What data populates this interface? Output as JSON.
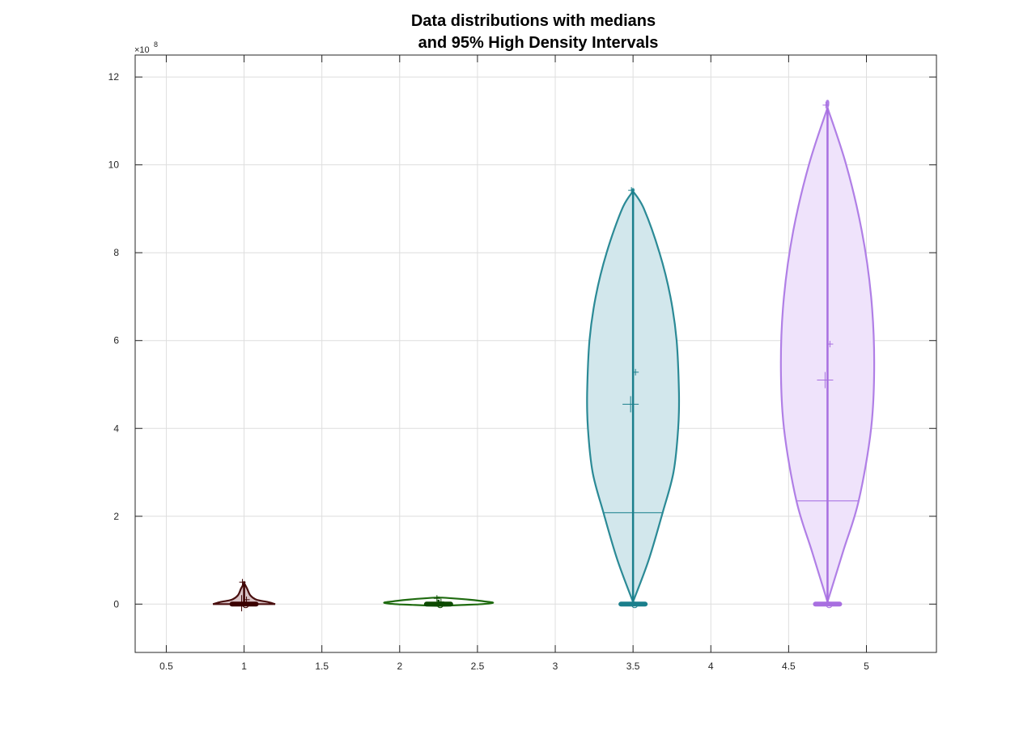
{
  "chart_data": {
    "type": "violin",
    "title": [
      "Data distributions with medians",
      "and 95% High Density Intervals"
    ],
    "xlabel": "",
    "ylabel": "",
    "y_exponent_label": "×10",
    "y_exponent_power": "8",
    "xlim": [
      0.3,
      5.45
    ],
    "ylim": [
      -1.1,
      12.5
    ],
    "y_scale_factor": 100000000,
    "xticks": [
      0.5,
      1,
      1.5,
      2,
      2.5,
      3,
      3.5,
      4,
      4.5,
      5
    ],
    "xtick_labels": [
      "0.5",
      "1",
      "1.5",
      "2",
      "2.5",
      "3",
      "3.5",
      "4",
      "4.5",
      "5"
    ],
    "yticks": [
      0,
      2,
      4,
      6,
      8,
      10,
      12
    ],
    "ytick_labels": [
      "0",
      "2",
      "4",
      "6",
      "8",
      "10",
      "12"
    ],
    "grid": true,
    "violins": [
      {
        "position": 1,
        "edge_color": "#4a1010",
        "fill_color": "#d9c3c6",
        "line_color": "#3b0000",
        "profile": [
          [
            0,
            0.2
          ],
          [
            0.05,
            0.15
          ],
          [
            0.1,
            0.08
          ],
          [
            0.2,
            0.04
          ],
          [
            0.35,
            0.02
          ],
          [
            0.45,
            0.005
          ],
          [
            0.5,
            0.0
          ]
        ],
        "median": 0.05,
        "mean": 0.08,
        "hdi": [
          0.0,
          0.45
        ],
        "max_marker": 0.52,
        "markers": [
          0.5,
          0.1,
          0.02
        ]
      },
      {
        "position": 2.25,
        "edge_color": "#1f6b10",
        "fill_color": "#ffffff",
        "line_color": "#0d4a00",
        "profile": [
          [
            -0.04,
            0.0
          ],
          [
            -0.02,
            0.15
          ],
          [
            0.0,
            0.28
          ],
          [
            0.03,
            0.35
          ],
          [
            0.06,
            0.3
          ],
          [
            0.1,
            0.2
          ],
          [
            0.13,
            0.1
          ],
          [
            0.15,
            0.0
          ]
        ],
        "median": 0.02,
        "mean": 0.03,
        "hdi": [
          0.0,
          0.1
        ],
        "max_marker": 0.16,
        "markers": [
          0.13,
          0.05
        ]
      },
      {
        "position": 3.5,
        "edge_color": "#2b8a96",
        "fill_color": "#d2e7ec",
        "line_color": "#1b7f8c",
        "profile": [
          [
            0.05,
            0.0
          ],
          [
            1,
            0.1
          ],
          [
            2.08,
            0.19
          ],
          [
            3,
            0.26
          ],
          [
            4,
            0.29
          ],
          [
            4.8,
            0.295
          ],
          [
            6,
            0.28
          ],
          [
            7,
            0.24
          ],
          [
            8,
            0.17
          ],
          [
            9,
            0.07
          ],
          [
            9.4,
            0.0
          ]
        ],
        "median": 4.55,
        "mean": 5.28,
        "hdi": [
          0.0,
          9.4
        ],
        "quartile_line": 2.08,
        "max_marker": 9.42,
        "markers": [
          9.42,
          5.28,
          4.55
        ]
      },
      {
        "position": 4.75,
        "edge_color": "#b07fe6",
        "fill_color": "#efe3fb",
        "line_color": "#a86fe0",
        "profile": [
          [
            0.05,
            0.0
          ],
          [
            1.2,
            0.1
          ],
          [
            2.35,
            0.2
          ],
          [
            4,
            0.28
          ],
          [
            5.5,
            0.3
          ],
          [
            7,
            0.28
          ],
          [
            8.5,
            0.22
          ],
          [
            10,
            0.12
          ],
          [
            11.3,
            0.0
          ]
        ],
        "median": 5.1,
        "mean": 5.92,
        "hdi": [
          0.0,
          11.3
        ],
        "quartile_line": 2.35,
        "max_marker": 11.36,
        "markers": [
          11.36,
          5.92,
          5.1
        ]
      }
    ]
  }
}
